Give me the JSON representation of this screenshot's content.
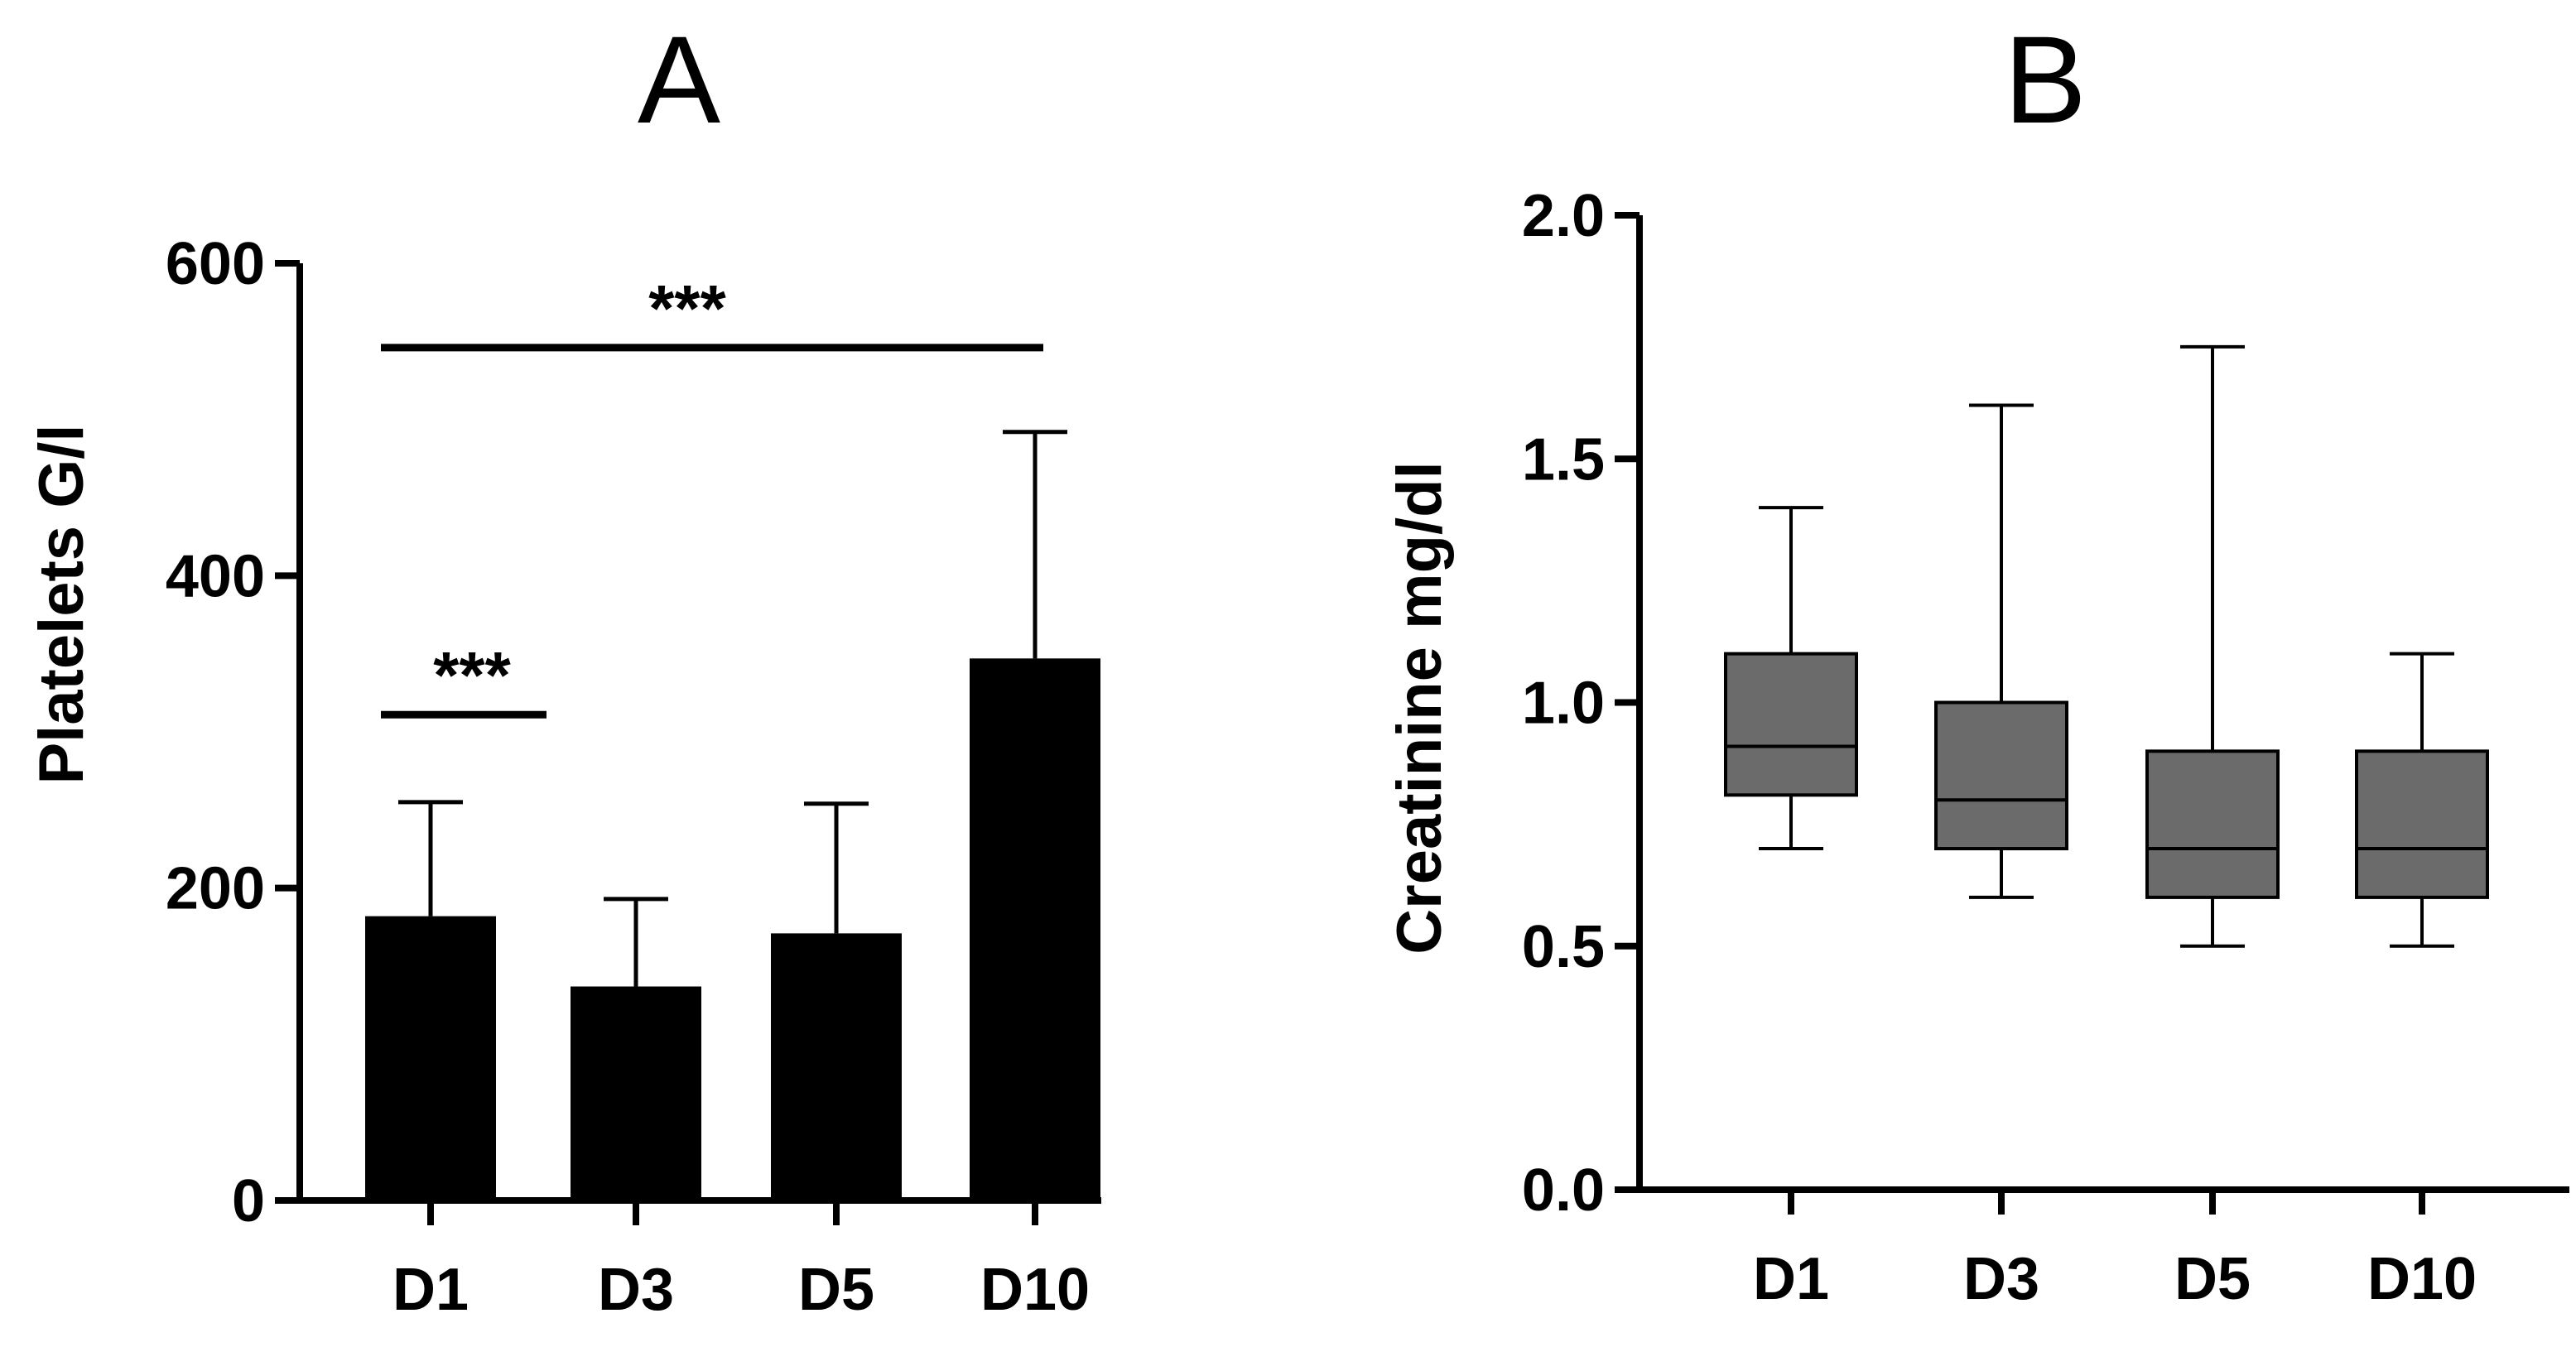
{
  "chart_data": [
    {
      "panel": "A",
      "type": "bar",
      "categories": [
        "D1",
        "D3",
        "D5",
        "D10"
      ],
      "values": [
        182,
        137,
        171,
        347
      ],
      "error_upper": [
        255,
        193,
        254,
        492
      ],
      "bar_color": "#000000",
      "ylabel": "Platelets G/l",
      "ylim": [
        0,
        600
      ],
      "yticks": [
        "0",
        "200",
        "400",
        "600"
      ],
      "significance": [
        {
          "from": "D1",
          "to": "D3",
          "label": "***",
          "y": 311
        },
        {
          "from": "D1",
          "to": "D10",
          "label": "***",
          "y": 546
        }
      ]
    },
    {
      "panel": "B",
      "type": "box",
      "categories": [
        "D1",
        "D3",
        "D5",
        "D10"
      ],
      "boxes": [
        {
          "min": 0.7,
          "q1": 0.81,
          "median": 0.91,
          "q3": 1.1,
          "max": 1.4
        },
        {
          "min": 0.6,
          "q1": 0.7,
          "median": 0.8,
          "q3": 1.0,
          "max": 1.61
        },
        {
          "min": 0.5,
          "q1": 0.6,
          "median": 0.7,
          "q3": 0.9,
          "max": 1.73
        },
        {
          "min": 0.5,
          "q1": 0.6,
          "median": 0.7,
          "q3": 0.9,
          "max": 1.1
        }
      ],
      "box_color": "#6b6b6b",
      "ylabel": "Creatinine mg/dl",
      "ylim": [
        0,
        2.0
      ],
      "yticks": [
        "0.0",
        "0.5",
        "1.0",
        "1.5",
        "2.0"
      ]
    }
  ]
}
